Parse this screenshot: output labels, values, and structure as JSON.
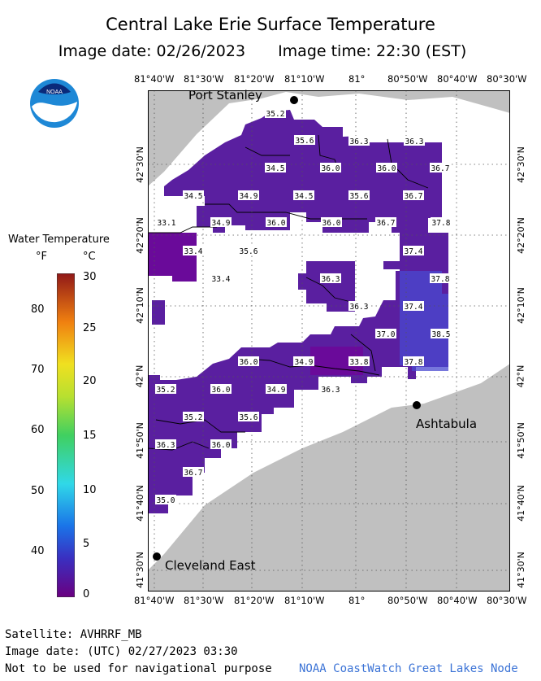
{
  "title": "Central Lake Erie Surface Temperature",
  "image_date_label": "Image date: 02/26/2023",
  "image_time_label": "Image time: 22:30 (EST)",
  "logo_text": "NOAA",
  "legend": {
    "title": "Water Temperature",
    "unit_f": "°F",
    "unit_c": "°C",
    "f_ticks": [
      "80",
      "70",
      "60",
      "50",
      "40"
    ],
    "c_ticks": [
      "30",
      "25",
      "20",
      "15",
      "10",
      "5",
      "0"
    ]
  },
  "lon_labels": [
    "81°40'W",
    "81°30'W",
    "81°20'W",
    "81°10'W",
    "81°",
    "80°50'W",
    "80°40'W",
    "80°30'W"
  ],
  "lat_labels": [
    "42°30'N",
    "42°20'N",
    "42°10'N",
    "42°N",
    "41°50'N",
    "41°40'N",
    "41°30'N"
  ],
  "cities": {
    "port_stanley": "Port Stanley",
    "ashtabula": "Ashtabula",
    "cleveland_east": "Cleveland East"
  },
  "temperature_labels": [
    "35.2",
    "35.6",
    "36.3",
    "36.3",
    "34.5",
    "36.0",
    "36.0",
    "36.7",
    "34.5",
    "34.9",
    "34.5",
    "35.6",
    "36.7",
    "33.1",
    "34.9",
    "36.0",
    "36.0",
    "36.7",
    "37.8",
    "33.4",
    "35.6",
    "37.4",
    "33.4",
    "36.3",
    "37.8",
    "36.3",
    "37.4",
    "37.0",
    "38.5",
    "36.0",
    "34.9",
    "33.8",
    "37.8",
    "35.2",
    "36.0",
    "34.9",
    "36.3",
    "35.2",
    "35.6",
    "36.3",
    "36.0",
    "36.7",
    "35.0"
  ],
  "footer": {
    "satellite": "Satellite: AVHRRF_MB",
    "utc_date": "Image date: (UTC) 02/27/2023  03:30",
    "disclaimer": "Not to be used for navigational purpose",
    "credit": "NOAA CoastWatch Great Lakes Node"
  },
  "colors": {
    "land": "#c0c0c0",
    "water_cold": "#5a1fa0",
    "credit": "#3b73d6"
  }
}
